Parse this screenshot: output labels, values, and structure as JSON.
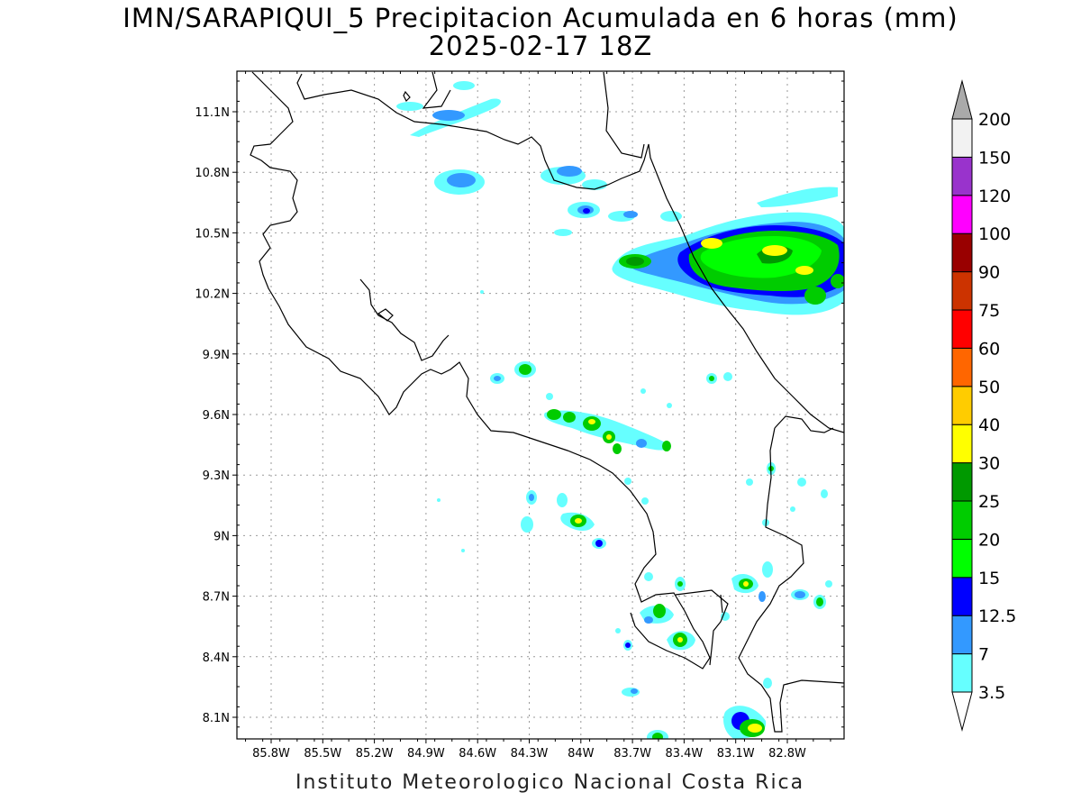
{
  "header": {
    "title": "IMN/SARAPIQUI_5 Precipitacion Acumulada en 6 horas (mm)",
    "subtitle": "2025-02-17 18Z"
  },
  "footer": {
    "credit": "Instituto Meteorologico Nacional Costa Rica"
  },
  "map": {
    "region": "Costa Rica",
    "lon_range": [
      -86.15,
      -82.55
    ],
    "lat_range": [
      8.0,
      11.3
    ],
    "grid": true,
    "lon_ticks": [
      "85.8W",
      "85.5W",
      "85.2W",
      "84.9W",
      "84.6W",
      "84.3W",
      "84W",
      "83.7W",
      "83.4W",
      "83.1W",
      "82.8W"
    ],
    "lat_ticks": [
      "11.1N",
      "10.8N",
      "10.5N",
      "10.2N",
      "9.9N",
      "9.6N",
      "9.3N",
      "9N",
      "8.7N",
      "8.4N",
      "8.1N"
    ]
  },
  "colorbar": {
    "levels": [
      "3.5",
      "7",
      "12.5",
      "15",
      "20",
      "25",
      "30",
      "40",
      "50",
      "60",
      "75",
      "90",
      "100",
      "120",
      "150",
      "200"
    ],
    "colors": [
      "#66ffff",
      "#3399ff",
      "#0000ff",
      "#00ff00",
      "#00cc00",
      "#009900",
      "#ffff00",
      "#ffcc00",
      "#ff6600",
      "#ff0000",
      "#cc3300",
      "#990000",
      "#ff00ff",
      "#9933cc",
      "#f2f2f2",
      "#aaaaaa"
    ]
  }
}
